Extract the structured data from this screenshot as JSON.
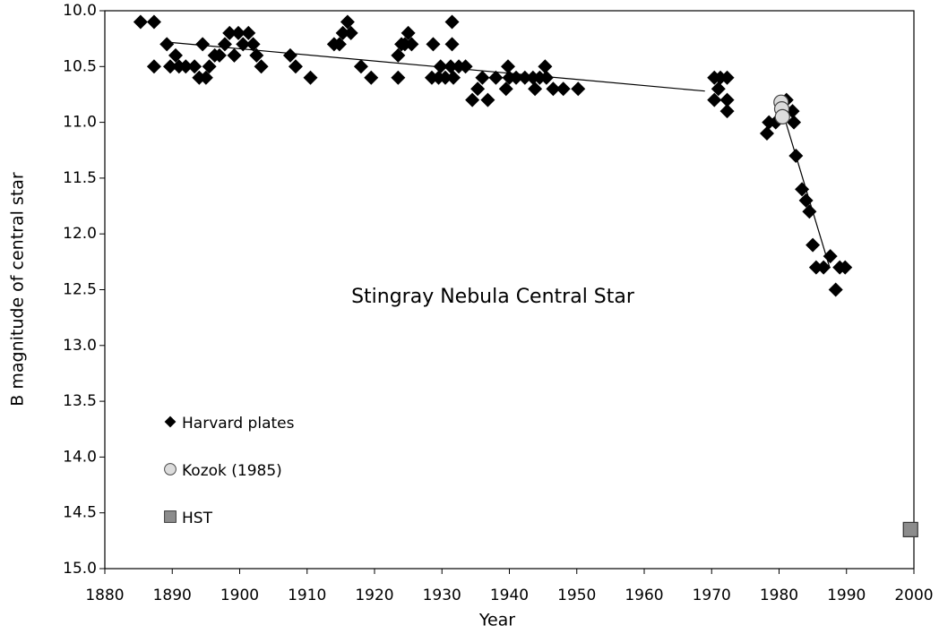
{
  "chart_data": {
    "type": "scatter",
    "annotation": "Stingray Nebula Central Star",
    "x_label": "Year",
    "y_label": "B magnitude of central star",
    "xlim": [
      1880,
      2000
    ],
    "xticks": [
      1880,
      1890,
      1900,
      1910,
      1920,
      1930,
      1940,
      1950,
      1960,
      1970,
      1980,
      1990,
      2000
    ],
    "ylim": [
      10.0,
      15.0
    ],
    "y_inverted": true,
    "yticks": [
      {
        "value": 10.0,
        "label": "10.0"
      },
      {
        "value": 10.5,
        "label": "10.5"
      },
      {
        "value": 11.0,
        "label": "11.0"
      },
      {
        "value": 11.5,
        "label": "11.5"
      },
      {
        "value": 12.0,
        "label": "12.0"
      },
      {
        "value": 12.5,
        "label": "12.5"
      },
      {
        "value": 13.0,
        "label": "13.0"
      },
      {
        "value": 13.5,
        "label": "13.5"
      },
      {
        "value": 14.0,
        "label": "14.0"
      },
      {
        "value": 14.5,
        "label": "14.5"
      },
      {
        "value": 15.0,
        "label": "15.0"
      }
    ],
    "series": [
      {
        "name": "Harvard plates",
        "marker": "diamond",
        "color": "#000000",
        "x": [
          1885.3,
          1887.3,
          1887.3,
          1889.2,
          1889.7,
          1890.5,
          1891,
          1892,
          1893.3,
          1894,
          1894.5,
          1895,
          1895.5,
          1896.3,
          1897,
          1897.8,
          1898.5,
          1899.2,
          1899.8,
          1900.5,
          1901.3,
          1902,
          1902.5,
          1903.2,
          1907.5,
          1908.3,
          1910.5,
          1914,
          1914.8,
          1915.3,
          1916,
          1916.5,
          1918,
          1919.5,
          1923.5,
          1923.5,
          1924,
          1924.5,
          1925,
          1925.5,
          1928.5,
          1928.7,
          1929.5,
          1929.8,
          1930.5,
          1931.3,
          1931.5,
          1931.5,
          1931.7,
          1932.5,
          1933.5,
          1934.5,
          1935.3,
          1936,
          1936.8,
          1938,
          1939.5,
          1939.8,
          1940,
          1941,
          1942.3,
          1943.5,
          1943.8,
          1944.5,
          1945.3,
          1945.5,
          1946.5,
          1948,
          1950.2,
          1970.4,
          1970.4,
          1971,
          1971.3,
          1972.3,
          1972.3,
          1972.3,
          1978.2,
          1978.5,
          1979.5,
          1981.1,
          1982,
          1982.2,
          1982.5,
          1983.4,
          1984,
          1984.5,
          1985,
          1985.5,
          1986.6,
          1987.6,
          1988.4,
          1989,
          1989.8
        ],
        "values": [
          10.1,
          10.1,
          10.5,
          10.3,
          10.5,
          10.4,
          10.5,
          10.5,
          10.5,
          10.6,
          10.3,
          10.6,
          10.5,
          10.4,
          10.4,
          10.3,
          10.2,
          10.4,
          10.2,
          10.3,
          10.2,
          10.3,
          10.4,
          10.5,
          10.4,
          10.5,
          10.6,
          10.3,
          10.3,
          10.2,
          10.1,
          10.2,
          10.5,
          10.6,
          10.6,
          10.4,
          10.3,
          10.3,
          10.2,
          10.3,
          10.6,
          10.3,
          10.6,
          10.5,
          10.6,
          10.5,
          10.1,
          10.3,
          10.6,
          10.5,
          10.5,
          10.8,
          10.7,
          10.6,
          10.8,
          10.6,
          10.7,
          10.5,
          10.6,
          10.6,
          10.6,
          10.6,
          10.7,
          10.6,
          10.5,
          10.6,
          10.7,
          10.7,
          10.7,
          10.8,
          10.6,
          10.7,
          10.6,
          10.6,
          10.8,
          10.9,
          11.1,
          11.0,
          11.0,
          10.8,
          10.9,
          11.0,
          11.3,
          11.6,
          11.7,
          11.8,
          12.1,
          12.3,
          12.3,
          12.2,
          12.5,
          12.3,
          12.3
        ]
      },
      {
        "name": "Kozok (1985)",
        "marker": "circle",
        "color": "#dcdcdc",
        "x": [
          1980.3,
          1980.4,
          1980.5
        ],
        "values": [
          10.82,
          10.88,
          10.95
        ]
      },
      {
        "name": "HST",
        "marker": "square",
        "color": "#8c8c8c",
        "x": [
          1999.5
        ],
        "values": [
          14.65
        ]
      }
    ],
    "trend_lines": [
      {
        "x": [
          1889,
          1969
        ],
        "values": [
          10.28,
          10.72
        ]
      },
      {
        "x": [
          1980.5,
          1987.5
        ],
        "values": [
          10.9,
          12.3
        ]
      }
    ]
  }
}
